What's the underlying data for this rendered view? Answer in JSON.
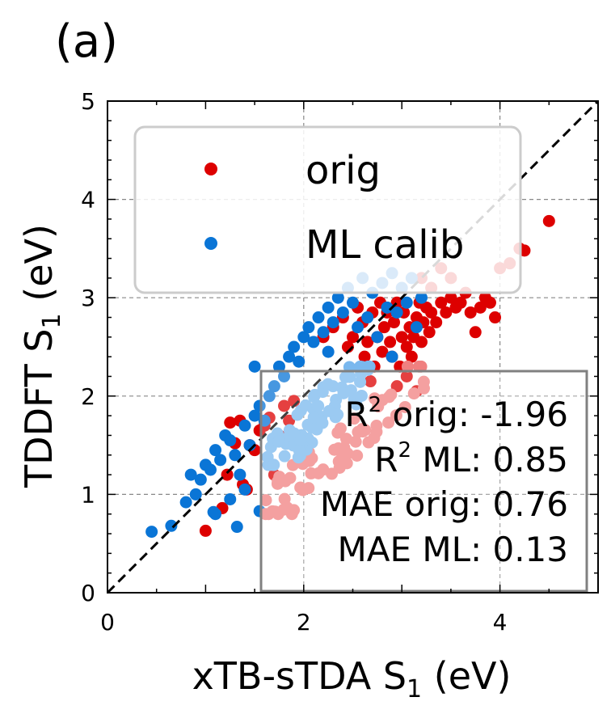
{
  "panel_label": "(a)",
  "chart_data": {
    "type": "scatter",
    "xlabel_main": "xTB-sTDA S",
    "xlabel_sub": "1",
    "xlabel_unit": " (eV)",
    "ylabel_main": "TDDFT S",
    "ylabel_sub": "1",
    "ylabel_unit": " (eV)",
    "xlim": [
      0,
      5
    ],
    "ylim": [
      0,
      5
    ],
    "x_ticks": [
      0,
      2,
      4
    ],
    "y_ticks": [
      0,
      1,
      2,
      3,
      4,
      5
    ],
    "grid": true,
    "reference_line": "y = x (dashed)",
    "legend_position": "upper-left",
    "series": [
      {
        "name": "orig",
        "color": "#dd0000",
        "points": [
          [
            1.0,
            0.63
          ],
          [
            1.17,
            0.86
          ],
          [
            1.22,
            1.2
          ],
          [
            1.25,
            1.73
          ],
          [
            1.3,
            1.52
          ],
          [
            1.35,
            1.75
          ],
          [
            1.38,
            1.1
          ],
          [
            1.42,
            1.05
          ],
          [
            1.45,
            1.5
          ],
          [
            1.5,
            1.45
          ],
          [
            1.55,
            1.65
          ],
          [
            1.6,
            1.7
          ],
          [
            1.65,
            1.78
          ],
          [
            1.7,
            1.2
          ],
          [
            1.75,
            1.6
          ],
          [
            1.8,
            1.9
          ],
          [
            1.85,
            1.75
          ],
          [
            1.9,
            1.95
          ],
          [
            2.2,
            2.6
          ],
          [
            2.3,
            2.7
          ],
          [
            2.4,
            2.8
          ],
          [
            2.45,
            2.5
          ],
          [
            2.5,
            2.6
          ],
          [
            2.55,
            2.9
          ],
          [
            2.6,
            2.75
          ],
          [
            2.62,
            2.4
          ],
          [
            2.65,
            2.55
          ],
          [
            2.7,
            2.85
          ],
          [
            2.72,
            2.3
          ],
          [
            2.75,
            2.6
          ],
          [
            2.78,
            2.95
          ],
          [
            2.8,
            2.45
          ],
          [
            2.82,
            2.7
          ],
          [
            2.85,
            2.85
          ],
          [
            2.88,
            2.55
          ],
          [
            2.9,
            2.4
          ],
          [
            2.92,
            2.75
          ],
          [
            2.95,
            2.95
          ],
          [
            2.98,
            2.3
          ],
          [
            3.0,
            2.6
          ],
          [
            3.02,
            2.85
          ],
          [
            3.05,
            2.5
          ],
          [
            3.08,
            2.7
          ],
          [
            3.1,
            2.4
          ],
          [
            3.12,
            2.6
          ],
          [
            3.15,
            2.8
          ],
          [
            3.18,
            2.95
          ],
          [
            3.2,
            2.55
          ],
          [
            3.22,
            2.75
          ],
          [
            3.25,
            2.9
          ],
          [
            3.28,
            2.65
          ],
          [
            3.3,
            2.85
          ],
          [
            3.35,
            2.75
          ],
          [
            3.4,
            2.95
          ],
          [
            3.45,
            2.85
          ],
          [
            3.5,
            3.0
          ],
          [
            3.55,
            2.9
          ],
          [
            3.6,
            2.95
          ],
          [
            3.65,
            3.05
          ],
          [
            3.7,
            2.85
          ],
          [
            3.75,
            2.65
          ],
          [
            3.8,
            2.9
          ],
          [
            3.85,
            3.0
          ],
          [
            3.9,
            2.95
          ],
          [
            3.95,
            2.8
          ],
          [
            4.0,
            3.3
          ],
          [
            4.1,
            3.35
          ],
          [
            4.2,
            3.5
          ],
          [
            4.25,
            3.48
          ],
          [
            4.5,
            3.78
          ],
          [
            3.2,
            3.2
          ],
          [
            3.3,
            3.1
          ],
          [
            3.5,
            3.2
          ],
          [
            3.4,
            3.3
          ],
          [
            2.68,
            2.15
          ],
          [
            2.95,
            2.1
          ],
          [
            3.05,
            2.2
          ],
          [
            3.15,
            2.05
          ]
        ]
      },
      {
        "name": "ML calib",
        "color": "#0a75d6",
        "points": [
          [
            0.45,
            0.62
          ],
          [
            0.65,
            0.68
          ],
          [
            0.8,
            0.92
          ],
          [
            0.85,
            1.2
          ],
          [
            0.9,
            1.0
          ],
          [
            0.95,
            1.15
          ],
          [
            1.0,
            1.3
          ],
          [
            1.05,
            1.25
          ],
          [
            1.08,
            0.82
          ],
          [
            1.1,
            1.45
          ],
          [
            1.15,
            1.35
          ],
          [
            1.2,
            1.6
          ],
          [
            1.25,
            1.55
          ],
          [
            1.3,
            1.4
          ],
          [
            1.35,
            1.2
          ],
          [
            1.4,
            1.7
          ],
          [
            1.45,
            1.5
          ],
          [
            1.5,
            1.8
          ],
          [
            1.55,
            1.9
          ],
          [
            1.6,
            1.75
          ],
          [
            1.65,
            2.0
          ],
          [
            1.7,
            2.1
          ],
          [
            1.75,
            2.3
          ],
          [
            1.8,
            2.2
          ],
          [
            1.85,
            2.4
          ],
          [
            1.9,
            2.5
          ],
          [
            1.95,
            2.35
          ],
          [
            2.0,
            2.6
          ],
          [
            2.05,
            2.7
          ],
          [
            2.1,
            2.55
          ],
          [
            2.15,
            2.8
          ],
          [
            2.2,
            2.65
          ],
          [
            2.25,
            2.9
          ],
          [
            2.3,
            2.75
          ],
          [
            2.35,
            3.0
          ],
          [
            2.4,
            2.85
          ],
          [
            2.45,
            3.1
          ],
          [
            2.5,
            2.95
          ],
          [
            2.55,
            2.7
          ],
          [
            2.6,
            3.2
          ],
          [
            2.65,
            2.8
          ],
          [
            2.7,
            3.05
          ],
          [
            2.75,
            2.6
          ],
          [
            2.8,
            3.15
          ],
          [
            2.85,
            2.9
          ],
          [
            2.9,
            3.25
          ],
          [
            2.95,
            2.85
          ],
          [
            3.0,
            3.1
          ],
          [
            3.05,
            2.95
          ],
          [
            3.1,
            3.2
          ],
          [
            3.15,
            2.7
          ],
          [
            3.2,
            3.0
          ],
          [
            2.9,
            2.4
          ],
          [
            1.5,
            2.3
          ],
          [
            1.32,
            0.67
          ],
          [
            1.55,
            0.83
          ],
          [
            1.4,
            1.05
          ],
          [
            1.25,
            0.95
          ],
          [
            1.1,
            0.8
          ],
          [
            2.25,
            2.45
          ]
        ]
      }
    ],
    "overlay_series": [
      {
        "color": "#f08080",
        "x_range": [
          1.6,
          3.3
        ],
        "y_range": [
          0.8,
          2.3
        ]
      },
      {
        "color": "#7ab8ee",
        "x_range": [
          1.6,
          2.7
        ],
        "y_range": [
          1.3,
          2.3
        ]
      }
    ],
    "stats": [
      {
        "label": "R",
        "sup": "2",
        "rest": " orig:  -1.96"
      },
      {
        "label": "R",
        "sup": "2",
        "rest": " ML:  0.85"
      },
      {
        "label": "MAE orig:  0.76",
        "sup": "",
        "rest": ""
      },
      {
        "label": "MAE ML:  0.13",
        "sup": "",
        "rest": ""
      }
    ]
  }
}
